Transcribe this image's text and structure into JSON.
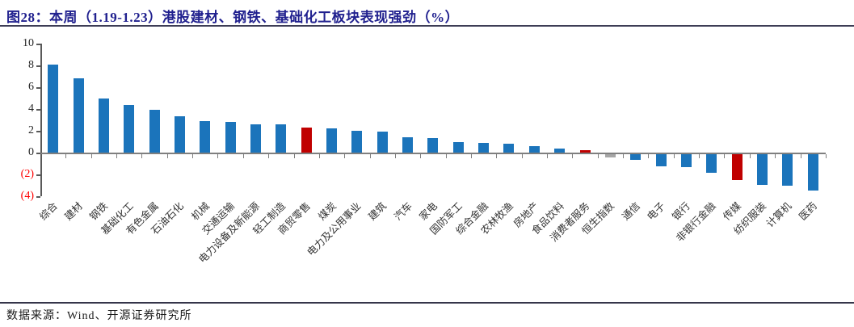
{
  "figure": {
    "title": "图28：本周（1.19-1.23）港股建材、钢铁、基础化工板块表现强劲（%）",
    "source": "数据来源：Wind、开源证券研究所"
  },
  "colors": {
    "title_navy": "#21218F",
    "bar_blue": "#1B74BB",
    "bar_red": "#C00000",
    "bar_gray": "#A6A6A6",
    "negative_axis_label_red": "#FF0000",
    "axis_gray": "#7F7F7F"
  },
  "chart_data": {
    "type": "bar",
    "title": "本周（1.19-1.23）港股建材、钢铁、基础化工板块表现强劲（%）",
    "xlabel": "",
    "ylabel": "",
    "ylim": [
      -4,
      10
    ],
    "yticks": [
      10,
      8,
      6,
      4,
      2,
      0,
      -2,
      -4
    ],
    "negative_tick_style": "red-parentheses",
    "grid": false,
    "legend": false,
    "categories": [
      "综合",
      "建材",
      "钢铁",
      "基础化工",
      "有色金属",
      "石油石化",
      "机械",
      "交通运输",
      "电力设备及新能源",
      "轻工制造",
      "商贸零售",
      "煤炭",
      "电力及公用事业",
      "建筑",
      "汽车",
      "家电",
      "国防军工",
      "综合金融",
      "农林牧渔",
      "房地产",
      "食品饮料",
      "消费者服务",
      "恒生指数",
      "通信",
      "电子",
      "银行",
      "非银行金融",
      "传媒",
      "纺织服装",
      "计算机",
      "医药"
    ],
    "values": [
      8.1,
      6.8,
      5.0,
      4.4,
      3.9,
      3.3,
      2.9,
      2.8,
      2.6,
      2.6,
      2.3,
      2.2,
      2.0,
      1.9,
      1.4,
      1.3,
      1.0,
      0.9,
      0.8,
      0.6,
      0.4,
      0.2,
      -0.3,
      -0.5,
      -1.1,
      -1.2,
      -1.7,
      -2.4,
      -2.8,
      -2.9,
      -3.3
    ],
    "bar_colors": [
      "blue",
      "blue",
      "blue",
      "blue",
      "blue",
      "blue",
      "blue",
      "blue",
      "blue",
      "blue",
      "red",
      "blue",
      "blue",
      "blue",
      "blue",
      "blue",
      "blue",
      "blue",
      "blue",
      "blue",
      "blue",
      "red",
      "gray",
      "blue",
      "blue",
      "blue",
      "blue",
      "red",
      "blue",
      "blue",
      "blue"
    ],
    "palette": {
      "blue": "#1B74BB",
      "red": "#C00000",
      "gray": "#A6A6A6"
    }
  }
}
